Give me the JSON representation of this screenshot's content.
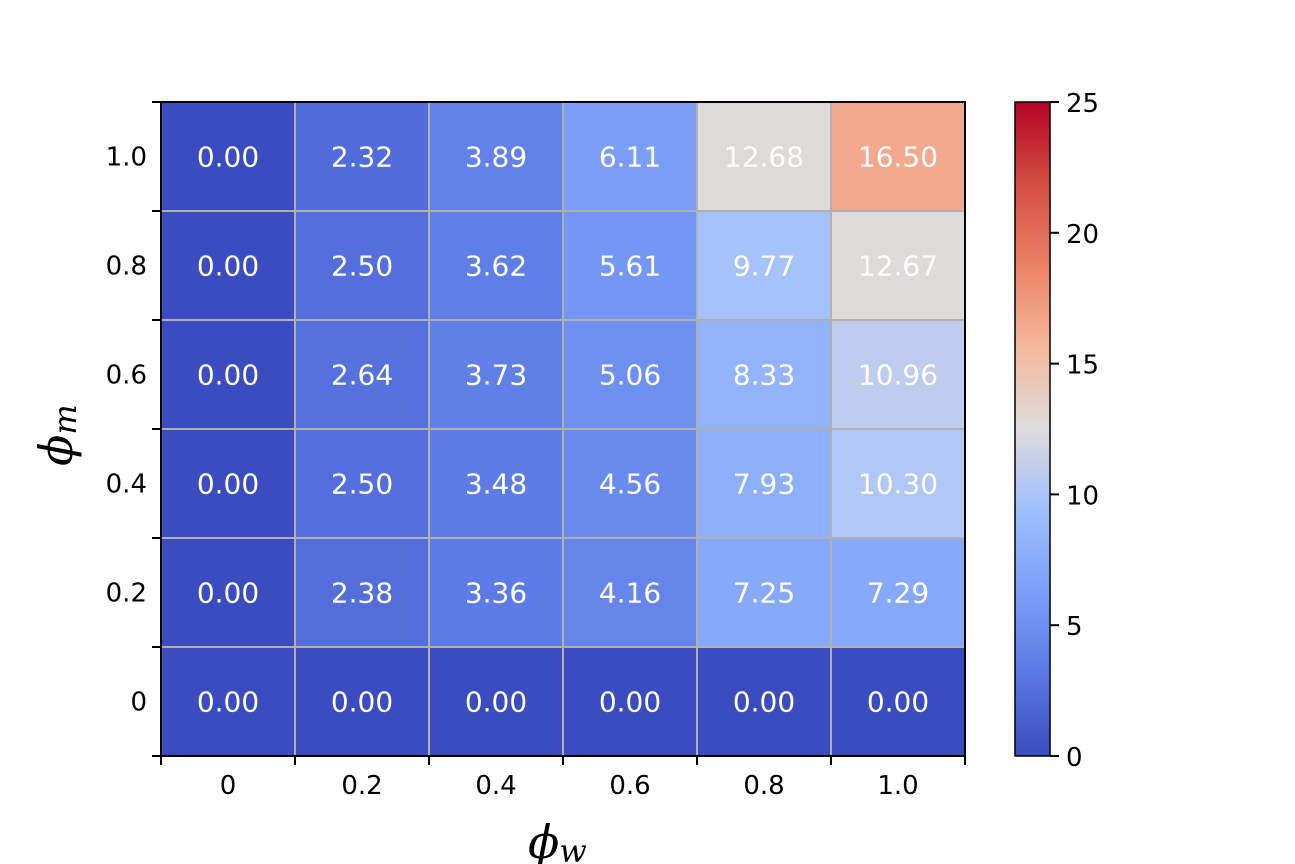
{
  "chart_data": {
    "type": "heatmap",
    "x_label_symbol": "ϕ",
    "x_label_sub": "w",
    "y_label_symbol": "ϕ",
    "y_label_sub": "m",
    "x_tick_labels": [
      "0",
      "0.2",
      "0.4",
      "0.6",
      "0.8",
      "1.0"
    ],
    "y_tick_labels": [
      "0",
      "0.2",
      "0.4",
      "0.6",
      "0.8",
      "1.0"
    ],
    "values": [
      [
        0.0,
        0.0,
        0.0,
        0.0,
        0.0,
        0.0
      ],
      [
        0.0,
        2.38,
        3.36,
        4.16,
        7.25,
        7.29
      ],
      [
        0.0,
        2.5,
        3.48,
        4.56,
        7.93,
        10.3
      ],
      [
        0.0,
        2.64,
        3.73,
        5.06,
        8.33,
        10.96
      ],
      [
        0.0,
        2.5,
        3.62,
        5.61,
        9.77,
        12.67
      ],
      [
        0.0,
        2.32,
        3.89,
        6.11,
        12.68,
        16.5
      ]
    ],
    "cell_labels": [
      [
        "0.00",
        "0.00",
        "0.00",
        "0.00",
        "0.00",
        "0.00"
      ],
      [
        "0.00",
        "2.38",
        "3.36",
        "4.16",
        "7.25",
        "7.29"
      ],
      [
        "0.00",
        "2.50",
        "3.48",
        "4.56",
        "7.93",
        "10.30"
      ],
      [
        "0.00",
        "2.64",
        "3.73",
        "5.06",
        "8.33",
        "10.96"
      ],
      [
        "0.00",
        "2.50",
        "3.62",
        "5.61",
        "9.77",
        "12.67"
      ],
      [
        "0.00",
        "2.32",
        "3.89",
        "6.11",
        "12.68",
        "16.50"
      ]
    ],
    "colorbar": {
      "min": 0,
      "max": 25,
      "ticks": [
        0,
        5,
        10,
        15,
        20,
        25
      ],
      "tick_labels": [
        "0",
        "5",
        "10",
        "15",
        "20",
        "25"
      ],
      "colormap": "coolwarm"
    },
    "grid": true,
    "grid_color": "#b0b0b0"
  }
}
